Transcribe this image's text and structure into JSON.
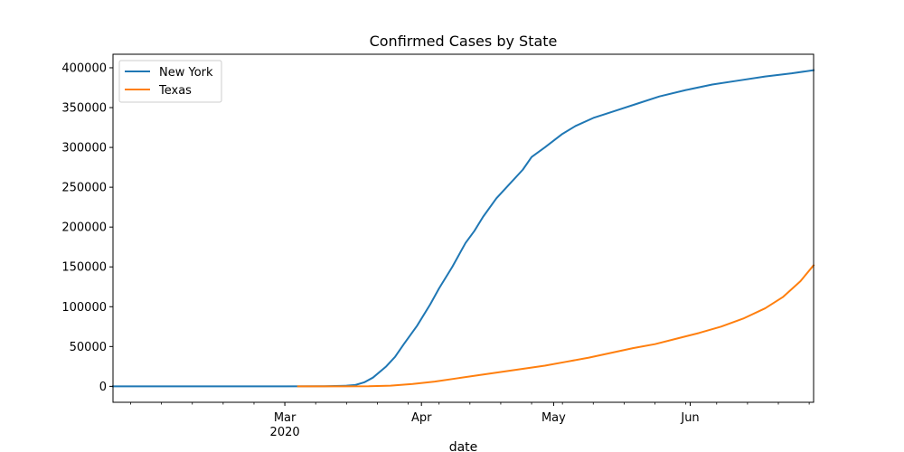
{
  "chart_data": {
    "type": "line",
    "title": "Confirmed Cases by State",
    "xlabel": "date",
    "ylabel": "",
    "x_start": "2020-01-22",
    "x_end": "2020-06-29",
    "ylim": [
      -20000,
      417000
    ],
    "y_ticks": [
      0,
      50000,
      100000,
      150000,
      200000,
      250000,
      300000,
      350000,
      400000
    ],
    "y_tick_labels": [
      "0",
      "50000",
      "100000",
      "150000",
      "200000",
      "250000",
      "300000",
      "350000",
      "400000"
    ],
    "x_ticks": [
      {
        "date": "2020-03-01",
        "label": "Mar",
        "sublabel": "2020"
      },
      {
        "date": "2020-04-01",
        "label": "Apr",
        "sublabel": ""
      },
      {
        "date": "2020-05-01",
        "label": "May",
        "sublabel": ""
      },
      {
        "date": "2020-06-01",
        "label": "Jun",
        "sublabel": ""
      }
    ],
    "legend_position": "upper left",
    "grid": false,
    "series": [
      {
        "name": "New York",
        "color": "#1f77b4",
        "points": [
          [
            "2020-01-22",
            0
          ],
          [
            "2020-03-01",
            0
          ],
          [
            "2020-03-10",
            200
          ],
          [
            "2020-03-15",
            800
          ],
          [
            "2020-03-17",
            1700
          ],
          [
            "2020-03-19",
            5000
          ],
          [
            "2020-03-21",
            11000
          ],
          [
            "2020-03-24",
            25000
          ],
          [
            "2020-03-26",
            37000
          ],
          [
            "2020-03-28",
            53000
          ],
          [
            "2020-03-31",
            76000
          ],
          [
            "2020-04-03",
            103000
          ],
          [
            "2020-04-05",
            123000
          ],
          [
            "2020-04-08",
            150000
          ],
          [
            "2020-04-11",
            180000
          ],
          [
            "2020-04-13",
            195000
          ],
          [
            "2020-04-15",
            213000
          ],
          [
            "2020-04-18",
            236000
          ],
          [
            "2020-04-21",
            254000
          ],
          [
            "2020-04-24",
            272000
          ],
          [
            "2020-04-26",
            288000
          ],
          [
            "2020-04-29",
            300000
          ],
          [
            "2020-05-03",
            317000
          ],
          [
            "2020-05-06",
            327000
          ],
          [
            "2020-05-10",
            337000
          ],
          [
            "2020-05-15",
            346000
          ],
          [
            "2020-05-20",
            355000
          ],
          [
            "2020-05-25",
            364000
          ],
          [
            "2020-05-31",
            372000
          ],
          [
            "2020-06-06",
            379000
          ],
          [
            "2020-06-12",
            384000
          ],
          [
            "2020-06-18",
            389000
          ],
          [
            "2020-06-24",
            393000
          ],
          [
            "2020-06-29",
            397000
          ]
        ]
      },
      {
        "name": "Texas",
        "color": "#ff7f0e",
        "points": [
          [
            "2020-03-04",
            0
          ],
          [
            "2020-03-20",
            100
          ],
          [
            "2020-03-25",
            800
          ],
          [
            "2020-03-30",
            3000
          ],
          [
            "2020-04-04",
            6000
          ],
          [
            "2020-04-09",
            10000
          ],
          [
            "2020-04-14",
            14000
          ],
          [
            "2020-04-19",
            18000
          ],
          [
            "2020-04-24",
            22000
          ],
          [
            "2020-04-29",
            26000
          ],
          [
            "2020-05-04",
            31000
          ],
          [
            "2020-05-09",
            36000
          ],
          [
            "2020-05-14",
            42000
          ],
          [
            "2020-05-19",
            48000
          ],
          [
            "2020-05-24",
            53000
          ],
          [
            "2020-05-29",
            60000
          ],
          [
            "2020-06-03",
            67000
          ],
          [
            "2020-06-08",
            75000
          ],
          [
            "2020-06-13",
            85000
          ],
          [
            "2020-06-18",
            98000
          ],
          [
            "2020-06-22",
            112000
          ],
          [
            "2020-06-26",
            132000
          ],
          [
            "2020-06-29",
            152000
          ]
        ]
      }
    ]
  }
}
